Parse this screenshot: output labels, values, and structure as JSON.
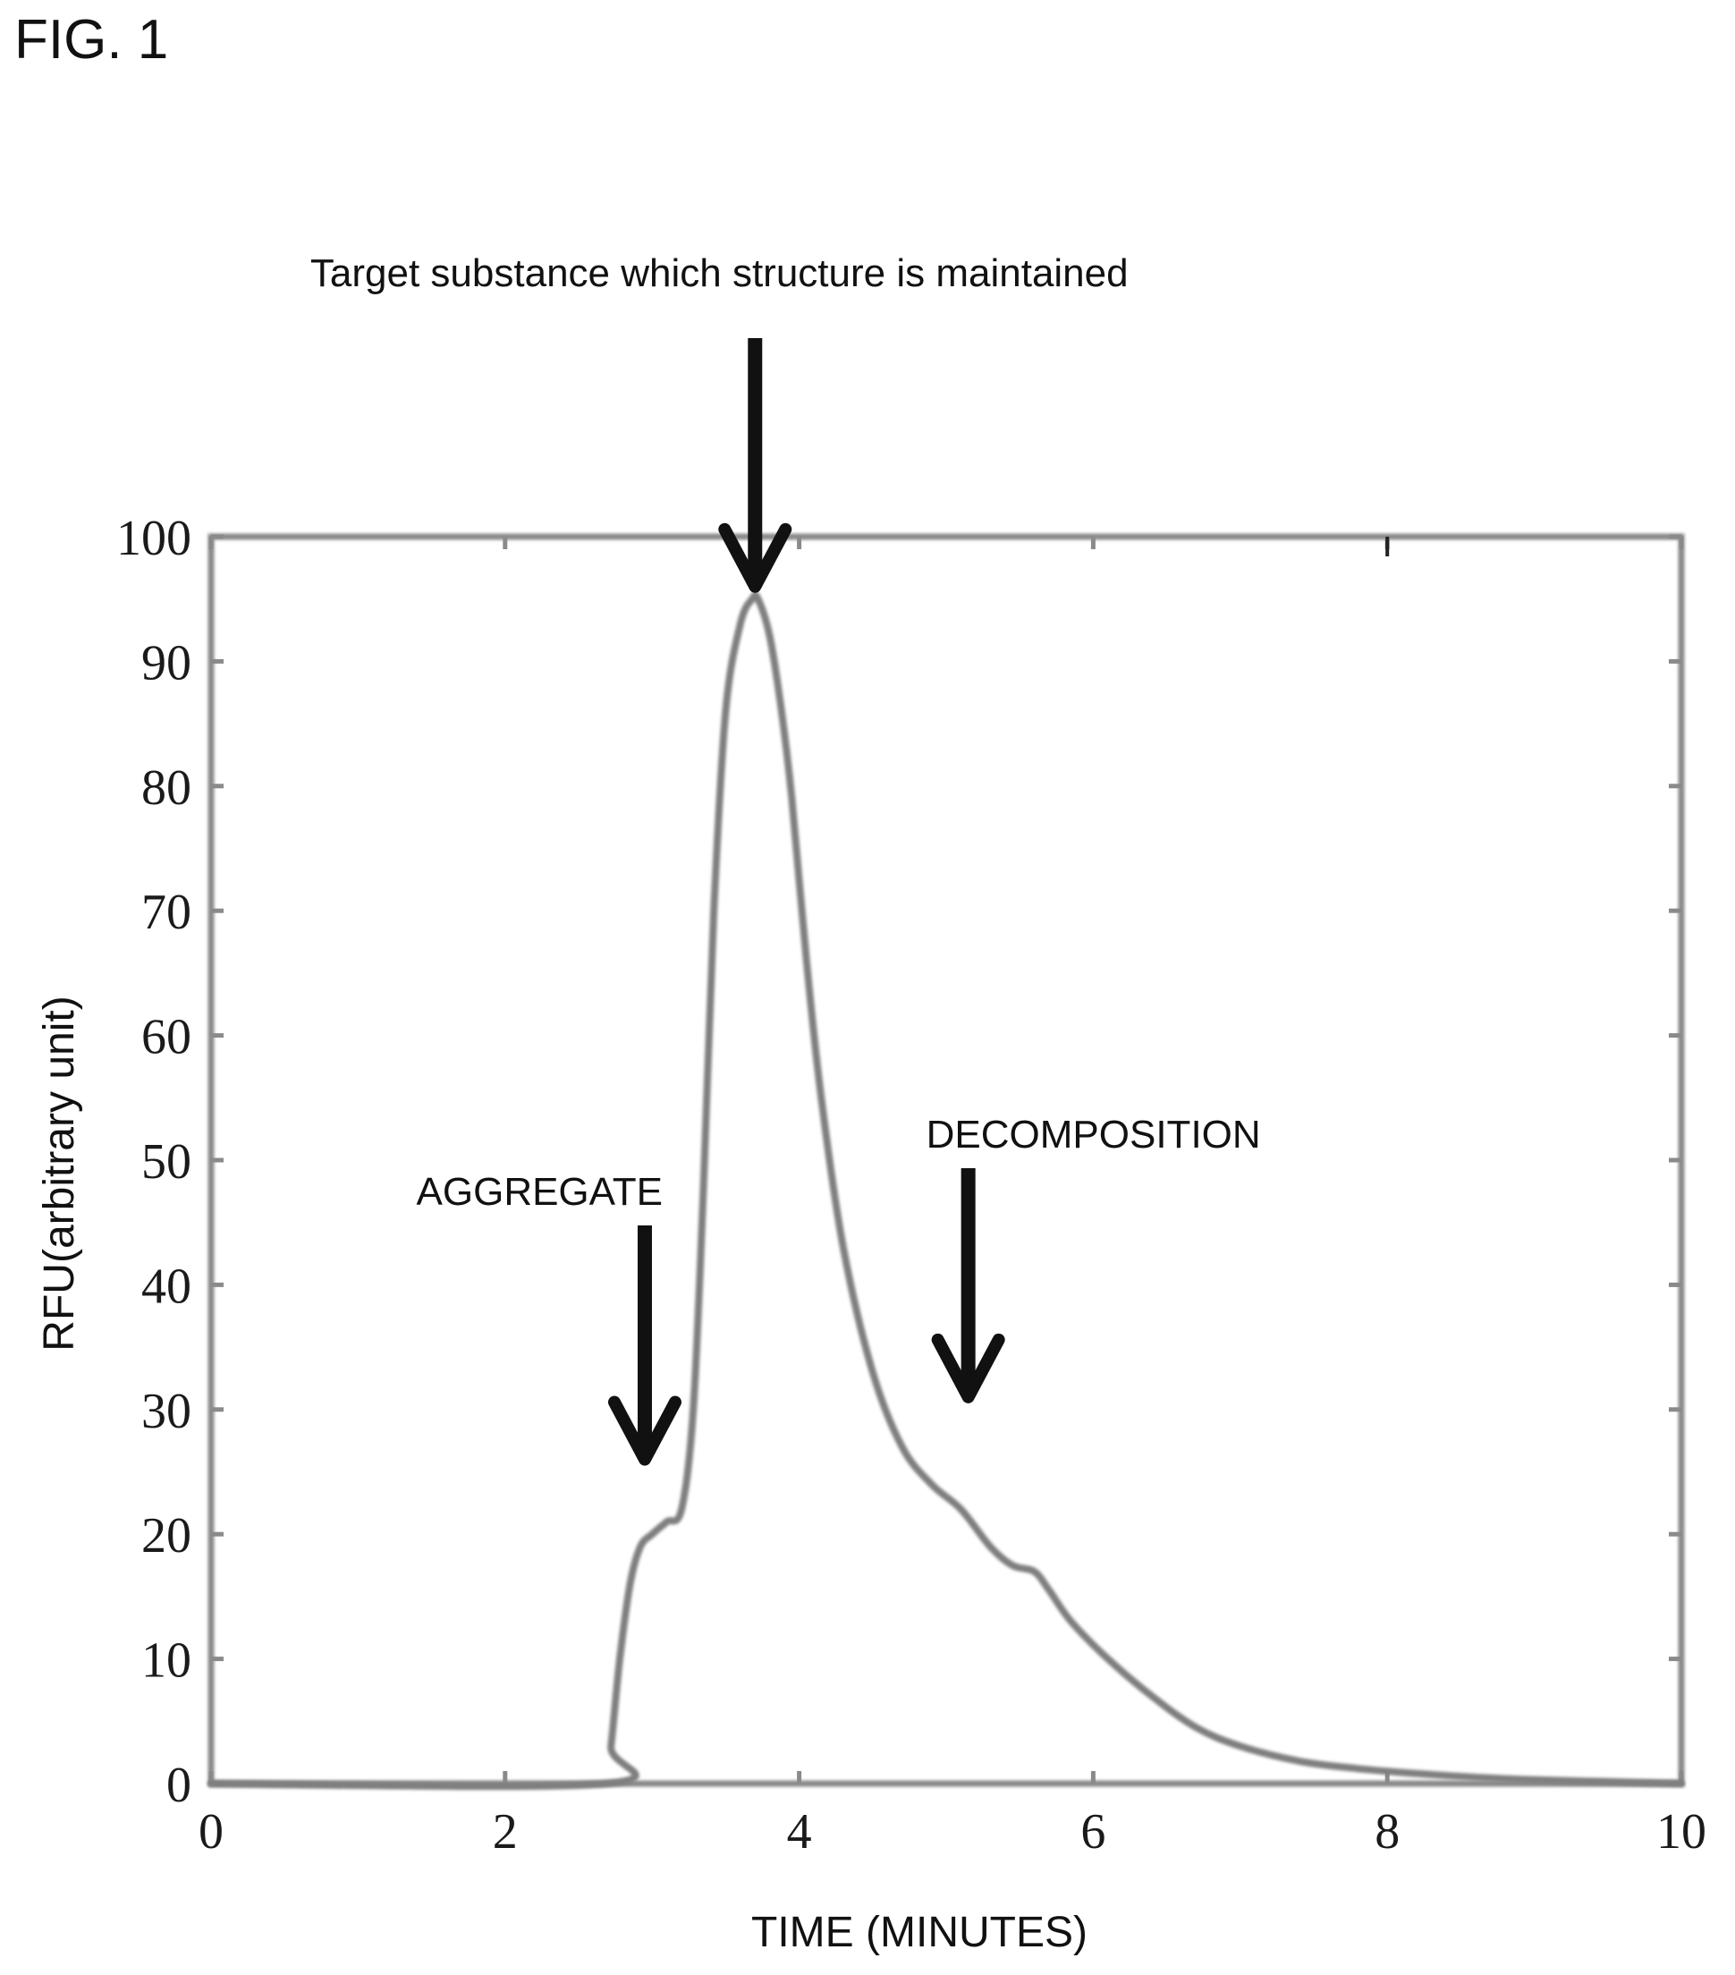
{
  "figure_label": "FIG. 1",
  "chart_data": {
    "type": "line",
    "xlabel": "TIME (MINUTES)",
    "ylabel": "RFU(arbitrary unit)",
    "xlim": [
      0,
      10
    ],
    "ylim": [
      0,
      100
    ],
    "xticks": [
      0,
      2,
      4,
      6,
      8,
      10
    ],
    "yticks": [
      0,
      10,
      20,
      30,
      40,
      50,
      60,
      70,
      80,
      90,
      100
    ],
    "grid": false,
    "series": [
      {
        "x": [
          0,
          2.68,
          2.72,
          2.78,
          2.85,
          2.92,
          3.0,
          3.1,
          3.2,
          3.28,
          3.35,
          3.42,
          3.5,
          3.6,
          3.68,
          3.72,
          3.8,
          3.88,
          3.95,
          4.05,
          4.15,
          4.3,
          4.5,
          4.7,
          4.9,
          5.1,
          5.3,
          5.45,
          5.6,
          5.7,
          5.85,
          6.1,
          6.4,
          6.7,
          7.0,
          7.4,
          7.8,
          8.2,
          8.6,
          9.0,
          9.5,
          10.0
        ],
        "y": [
          0,
          0,
          3,
          10,
          16,
          19,
          20,
          21,
          22,
          30,
          48,
          70,
          86,
          93,
          95,
          95,
          92,
          86,
          79,
          66,
          55,
          43,
          33,
          27,
          24,
          22,
          19,
          17.5,
          17,
          15.5,
          13,
          10,
          7,
          4.5,
          3,
          1.8,
          1.2,
          0.8,
          0.5,
          0.3,
          0.15,
          0
        ]
      }
    ],
    "annotations": [
      {
        "text": "Target substance which structure is maintained",
        "x": 3.7,
        "y_tip": 96,
        "role": "main-peak"
      },
      {
        "text": "AGGREGATE",
        "x": 2.95,
        "y_tip": 26,
        "role": "shoulder-left"
      },
      {
        "text": "DECOMPOSITION",
        "x": 5.15,
        "y_tip": 31,
        "role": "shoulder-right"
      }
    ]
  }
}
